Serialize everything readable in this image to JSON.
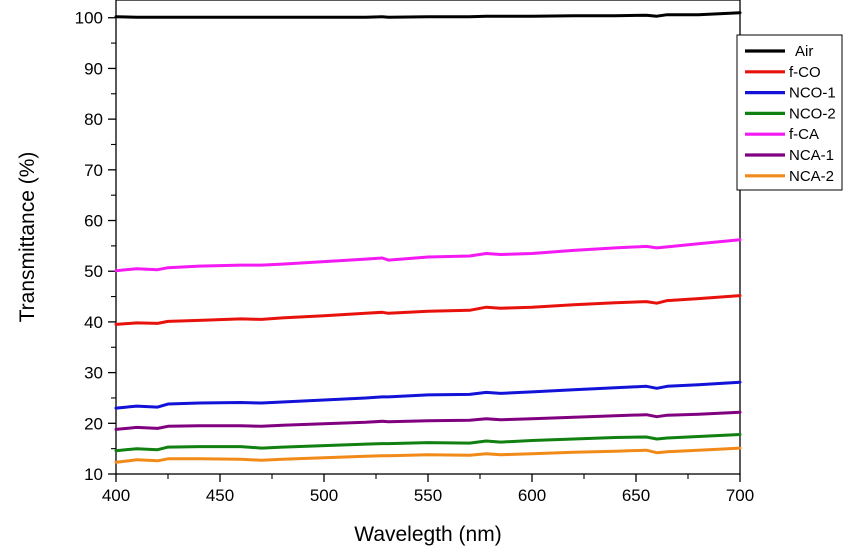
{
  "chart_data": {
    "type": "line",
    "title": "",
    "xlabel": "Wavelegth (nm)",
    "ylabel": "Transmittance (%)",
    "xlim": [
      400,
      700
    ],
    "ylim": [
      10,
      103.5
    ],
    "x_ticks": [
      400,
      450,
      500,
      550,
      600,
      650,
      700
    ],
    "y_ticks": [
      10,
      20,
      30,
      40,
      50,
      60,
      70,
      80,
      90,
      100
    ],
    "x_tick_labels": [
      "400",
      "450",
      "500",
      "550",
      "600",
      "650",
      "700"
    ],
    "y_tick_labels": [
      "10",
      "20",
      "30",
      "40",
      "50",
      "60",
      "70",
      "80",
      "90",
      "100"
    ],
    "legend_position": "top-right",
    "x": [
      400,
      410,
      420,
      425,
      440,
      460,
      470,
      480,
      500,
      520,
      528,
      531,
      550,
      570,
      578,
      585,
      600,
      620,
      640,
      655,
      660,
      665,
      680,
      700
    ],
    "series": [
      {
        "name": "Air",
        "color": "#000000",
        "values": [
          100.2,
          100.1,
          100.1,
          100.1,
          100.1,
          100.1,
          100.1,
          100.1,
          100.1,
          100.1,
          100.2,
          100.1,
          100.2,
          100.2,
          100.3,
          100.3,
          100.3,
          100.4,
          100.4,
          100.5,
          100.3,
          100.6,
          100.6,
          101.0
        ]
      },
      {
        "name": "f-CO",
        "color": "#e8120c",
        "values": [
          39.5,
          39.8,
          39.7,
          40.1,
          40.3,
          40.6,
          40.5,
          40.8,
          41.2,
          41.7,
          41.9,
          41.7,
          42.1,
          42.3,
          42.9,
          42.7,
          42.9,
          43.4,
          43.8,
          44.0,
          43.7,
          44.2,
          44.6,
          45.2
        ]
      },
      {
        "name": "NCO-1",
        "color": "#1212d8",
        "values": [
          23.0,
          23.4,
          23.2,
          23.8,
          24.0,
          24.1,
          24.0,
          24.2,
          24.6,
          25.0,
          25.2,
          25.2,
          25.6,
          25.7,
          26.1,
          25.9,
          26.2,
          26.6,
          27.0,
          27.3,
          26.9,
          27.3,
          27.6,
          28.1
        ]
      },
      {
        "name": "NCO-2",
        "color": "#108010",
        "values": [
          14.6,
          15.0,
          14.8,
          15.3,
          15.4,
          15.4,
          15.1,
          15.3,
          15.6,
          15.9,
          16.0,
          16.0,
          16.2,
          16.1,
          16.5,
          16.3,
          16.6,
          16.9,
          17.2,
          17.3,
          16.9,
          17.1,
          17.4,
          17.8
        ]
      },
      {
        "name": "f-CA",
        "color": "#f41af4",
        "values": [
          50.1,
          50.5,
          50.3,
          50.7,
          51.0,
          51.2,
          51.2,
          51.4,
          51.9,
          52.4,
          52.6,
          52.2,
          52.8,
          53.0,
          53.5,
          53.3,
          53.5,
          54.1,
          54.6,
          54.9,
          54.6,
          54.8,
          55.4,
          56.2
        ]
      },
      {
        "name": "NCA-1",
        "color": "#800080",
        "values": [
          18.8,
          19.2,
          19.0,
          19.4,
          19.5,
          19.5,
          19.4,
          19.6,
          19.9,
          20.2,
          20.4,
          20.3,
          20.5,
          20.6,
          20.9,
          20.7,
          20.9,
          21.2,
          21.5,
          21.7,
          21.3,
          21.6,
          21.8,
          22.2
        ]
      },
      {
        "name": "NCA-2",
        "color": "#f18a19",
        "values": [
          12.3,
          12.8,
          12.6,
          13.0,
          13.0,
          12.9,
          12.7,
          12.9,
          13.2,
          13.5,
          13.6,
          13.6,
          13.8,
          13.7,
          14.0,
          13.8,
          14.0,
          14.3,
          14.5,
          14.7,
          14.2,
          14.4,
          14.7,
          15.1
        ]
      }
    ]
  }
}
